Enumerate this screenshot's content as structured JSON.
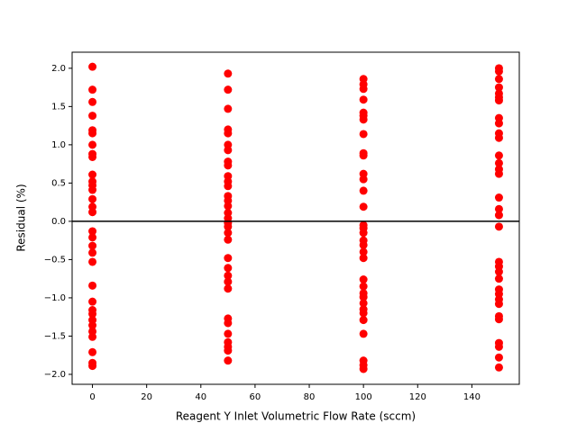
{
  "chart_data": {
    "type": "scatter",
    "xlabel": "Reagent Y Inlet Volumetric Flow Rate (sccm)",
    "ylabel": "Residual (%)",
    "color": "#ff0000",
    "reference_line": 0,
    "reference_color": "#000000",
    "x": [
      0,
      0,
      0,
      0,
      0,
      0,
      0,
      0,
      0,
      0,
      0,
      0,
      0,
      0,
      0,
      0,
      0,
      0,
      0,
      0,
      0,
      0,
      0,
      0,
      0,
      0,
      0,
      0,
      0,
      0,
      0,
      0,
      50,
      50,
      50,
      50,
      50,
      50,
      50,
      50,
      50,
      50,
      50,
      50,
      50,
      50,
      50,
      50,
      50,
      50,
      50,
      50,
      50,
      50,
      50,
      50,
      50,
      50,
      50,
      50,
      50,
      50,
      50,
      50,
      50,
      100,
      100,
      100,
      100,
      100,
      100,
      100,
      100,
      100,
      100,
      100,
      100,
      100,
      100,
      100,
      100,
      100,
      100,
      100,
      100,
      100,
      100,
      100,
      100,
      100,
      100,
      100,
      100,
      100,
      100,
      100,
      100,
      100,
      150,
      150,
      150,
      150,
      150,
      150,
      150,
      150,
      150,
      150,
      150,
      150,
      150,
      150,
      150,
      150,
      150,
      150,
      150,
      150,
      150,
      150,
      150,
      150,
      150,
      150,
      150,
      150,
      150,
      150,
      150,
      150,
      150
    ],
    "y": [
      2.02,
      1.72,
      1.56,
      1.38,
      1.19,
      1.15,
      1.0,
      0.88,
      0.84,
      0.61,
      0.52,
      0.47,
      0.41,
      0.29,
      0.19,
      0.12,
      -0.13,
      -0.21,
      -0.32,
      -0.41,
      -0.53,
      -0.84,
      -1.05,
      -1.16,
      -1.21,
      -1.29,
      -1.36,
      -1.44,
      -1.51,
      -1.71,
      -1.85,
      -1.89,
      1.93,
      1.72,
      1.47,
      1.2,
      1.15,
      1.0,
      0.93,
      0.78,
      0.73,
      0.59,
      0.52,
      0.46,
      0.33,
      0.27,
      0.2,
      0.11,
      0.04,
      -0.02,
      -0.07,
      -0.15,
      -0.24,
      -0.48,
      -0.61,
      -0.71,
      -0.79,
      -0.88,
      -1.27,
      -1.33,
      -1.47,
      -1.58,
      -1.64,
      -1.69,
      -1.82,
      1.86,
      1.79,
      1.73,
      1.59,
      1.42,
      1.38,
      1.33,
      1.14,
      0.89,
      0.86,
      0.62,
      0.55,
      0.4,
      0.19,
      -0.05,
      -0.09,
      -0.15,
      -0.25,
      -0.31,
      -0.4,
      -0.48,
      -0.76,
      -0.85,
      -0.94,
      -0.99,
      -1.07,
      -1.15,
      -1.2,
      -1.29,
      -1.47,
      -1.82,
      -1.88,
      -1.93,
      2.0,
      1.96,
      1.86,
      1.75,
      1.67,
      1.62,
      1.58,
      1.35,
      1.28,
      1.15,
      1.09,
      0.86,
      0.76,
      0.68,
      0.62,
      0.31,
      0.16,
      0.08,
      -0.07,
      -0.53,
      -0.59,
      -0.66,
      -0.75,
      -0.89,
      -0.95,
      -1.02,
      -1.08,
      -1.24,
      -1.28,
      -1.59,
      -1.64,
      -1.78,
      -1.91
    ],
    "xlim": [
      -7.5,
      157.5
    ],
    "ylim": [
      -2.13,
      2.21
    ],
    "xticks": [
      0,
      20,
      40,
      60,
      80,
      100,
      120,
      140
    ],
    "yticks": [
      {
        "value": 2.0,
        "label": "2.0"
      },
      {
        "value": 1.5,
        "label": "1.5"
      },
      {
        "value": 1.0,
        "label": "1.0"
      },
      {
        "value": 0.5,
        "label": "0.5"
      },
      {
        "value": 0.0,
        "label": "0.0"
      },
      {
        "value": -0.5,
        "label": "−0.5"
      },
      {
        "value": -1.0,
        "label": "−1.0"
      },
      {
        "value": -1.5,
        "label": "−1.5"
      },
      {
        "value": -2.0,
        "label": "−2.0"
      }
    ]
  }
}
